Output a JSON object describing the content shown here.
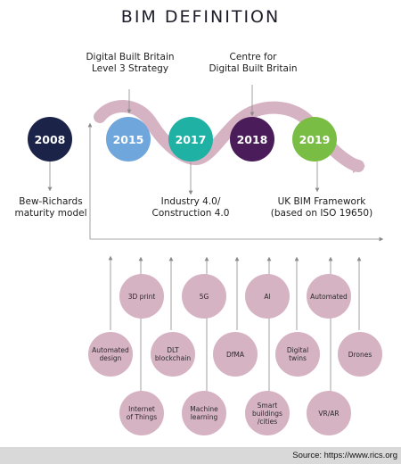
{
  "title": "BIM DEFINITION",
  "top_labels": {
    "dbb": "Digital Built Britain\nLevel 3 Strategy",
    "cdbb": "Centre for\nDigital Built Britain"
  },
  "years": [
    {
      "label": "2008",
      "color": "#1b2448"
    },
    {
      "label": "2015",
      "color": "#6fa6dc"
    },
    {
      "label": "2017",
      "color": "#1fb1a4"
    },
    {
      "label": "2018",
      "color": "#4a1d5a"
    },
    {
      "label": "2019",
      "color": "#79bd44"
    }
  ],
  "bottom_labels": {
    "bew": "Bew-Richards\nmaturity model",
    "industry": "Industry 4.0/\nConstruction 4.0",
    "uk": "UK BIM Framework\n(based on ISO 19650)"
  },
  "technologies": [
    "3D print",
    "5G",
    "AI",
    "Automated",
    "Automated\ndesign",
    "DLT\nblockchain",
    "DfMA",
    "Digital twins",
    "Drones",
    "Internet\nof Things",
    "Machine\nlearning",
    "Smart buildings\n/cities",
    "VR/AR"
  ],
  "colors": {
    "wave": "#d6b3c3",
    "tech": "#d6b3c3",
    "lines": "#8a8a8a"
  },
  "source": "Source: https://www.rics.org"
}
